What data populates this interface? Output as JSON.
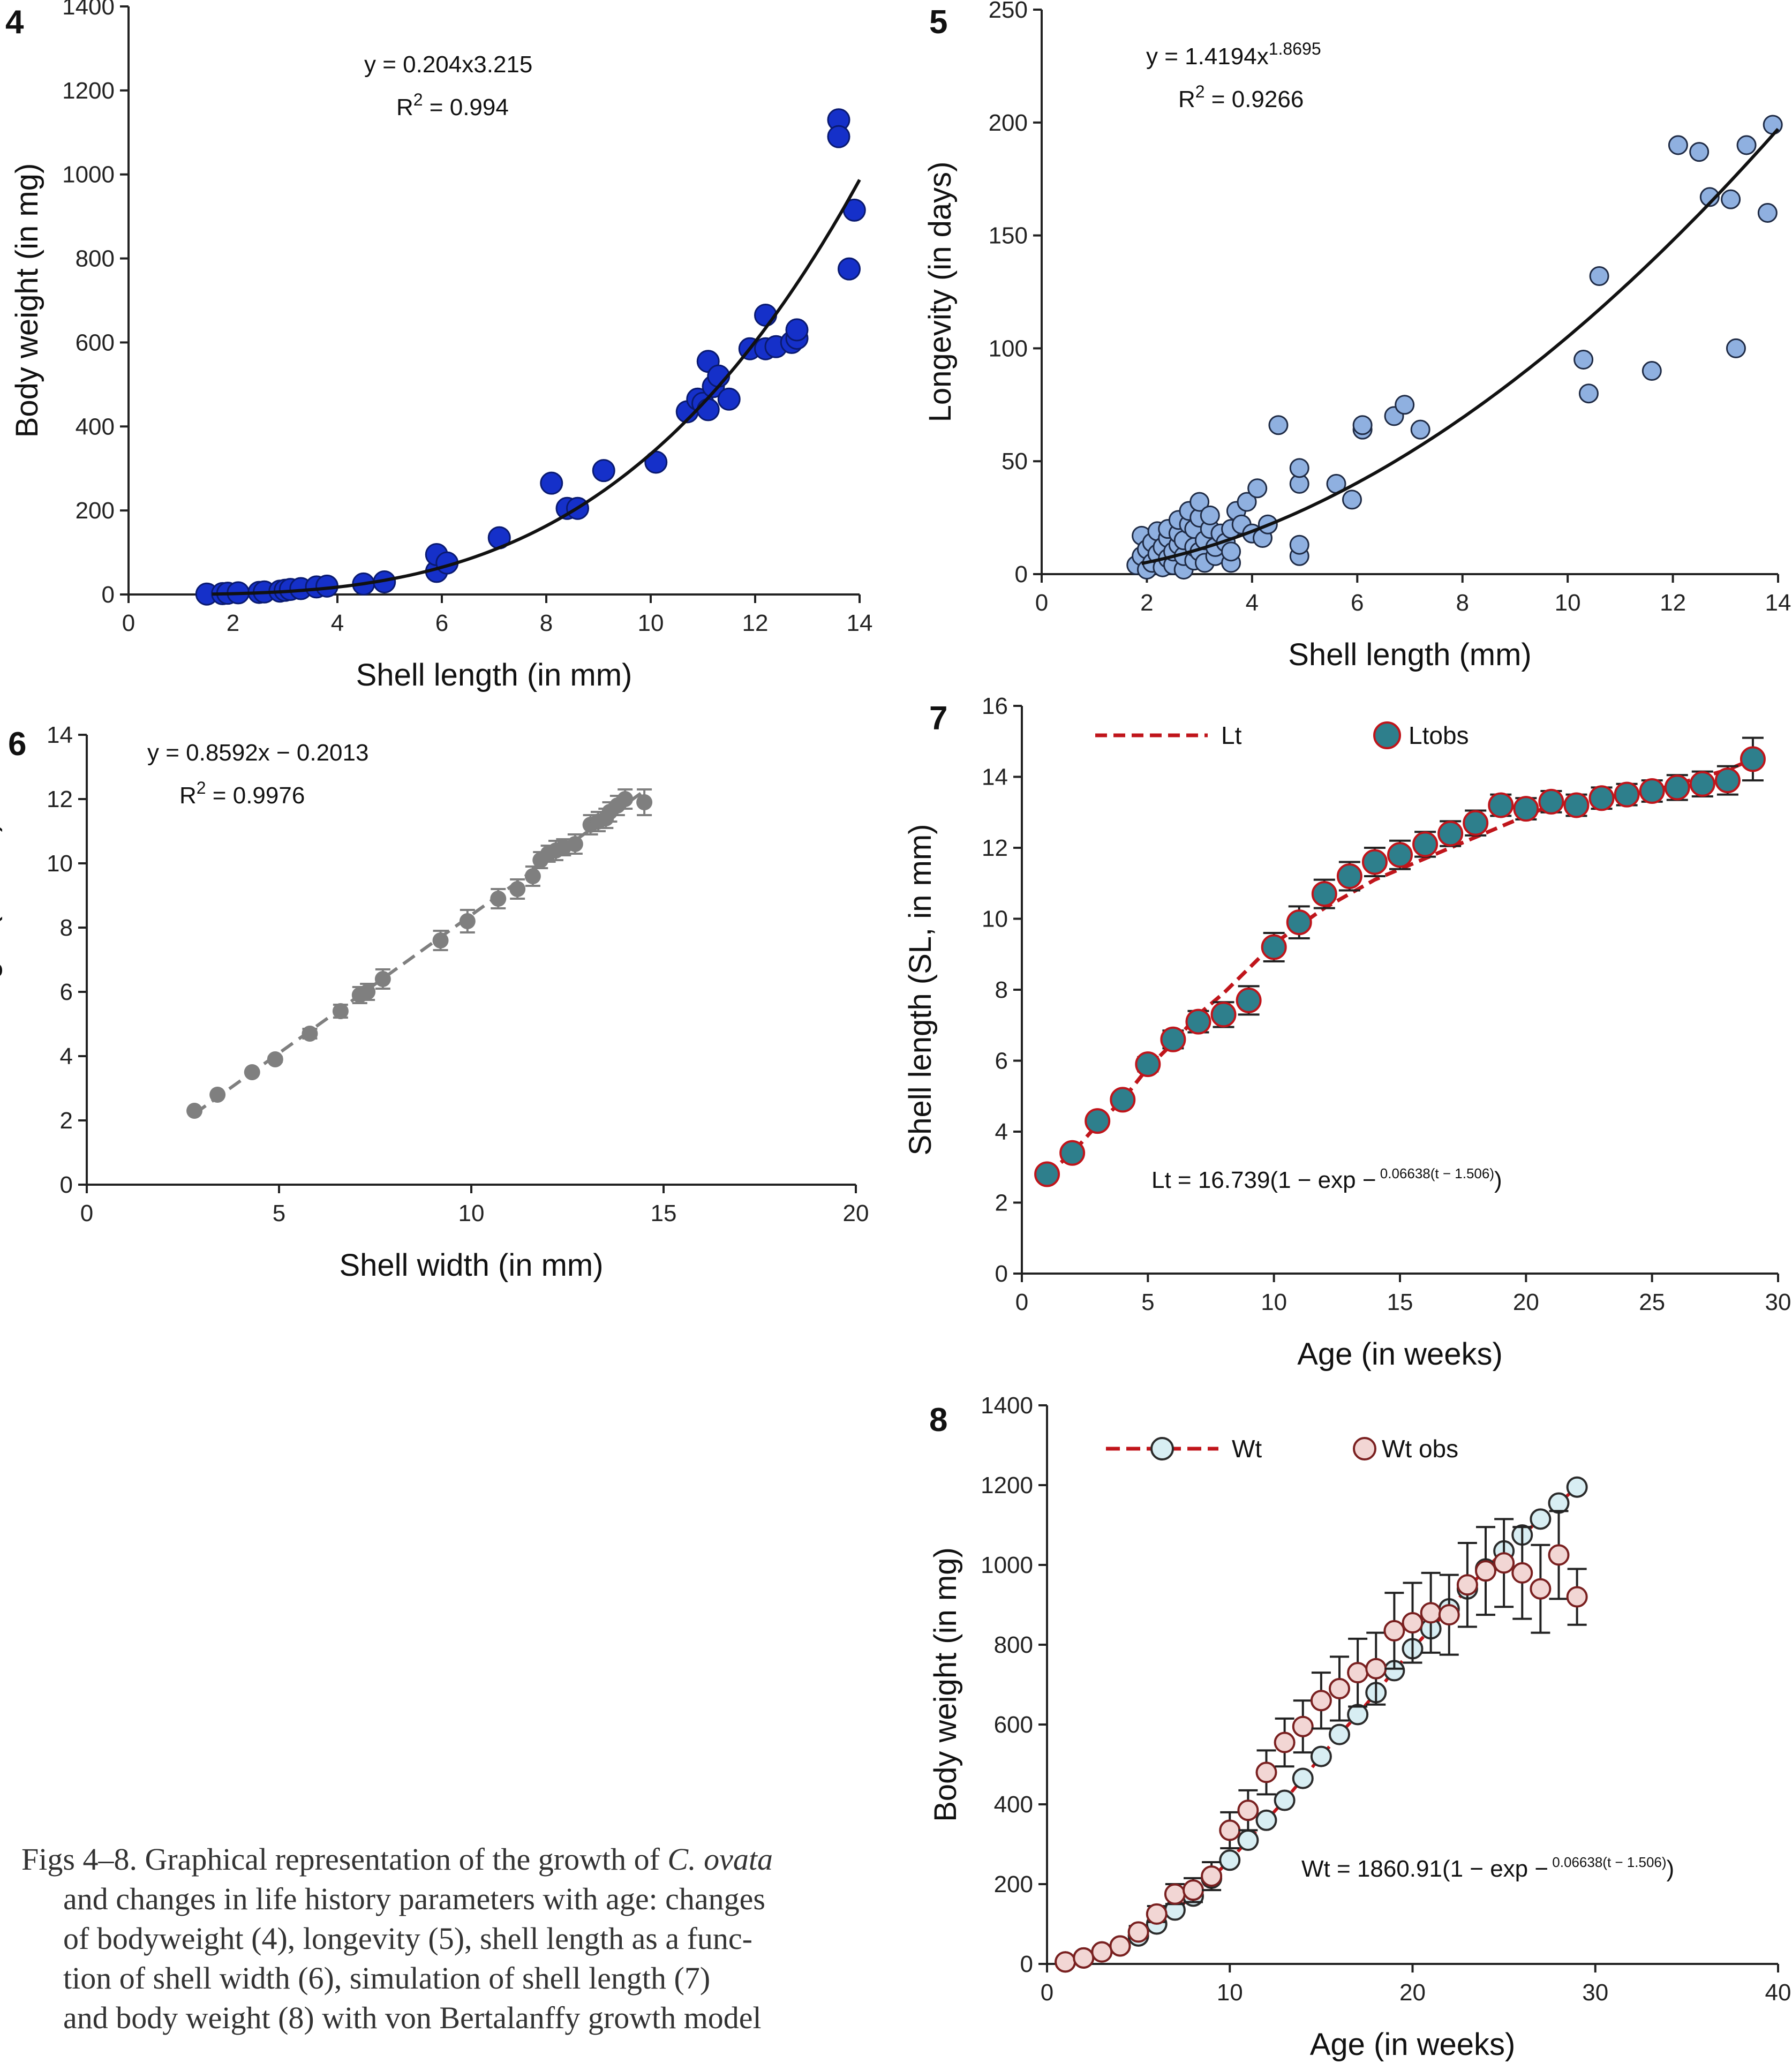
{
  "caption": {
    "lines": [
      {
        "prefix": "Figs 4–8. Graphical representation of the growth of ",
        "italic": "C. ovata",
        "suffix": ""
      },
      {
        "prefix": "and changes in life history parameters with age: changes",
        "italic": "",
        "suffix": ""
      },
      {
        "prefix": "of bodyweight (4), longevity (5), shell length as a func-",
        "italic": "",
        "suffix": ""
      },
      {
        "prefix": "tion of shell width (6), simulation of shell length (7)",
        "italic": "",
        "suffix": ""
      },
      {
        "prefix": "and body weight (8) with von Bertalanffy growth model",
        "italic": "",
        "suffix": ""
      }
    ]
  },
  "chart_data": [
    {
      "id": "4",
      "type": "scatter",
      "panel_number": "4",
      "xlabel": "Shell length (in mm)",
      "ylabel": "Body weight (in mg)",
      "xlim": [
        0,
        14
      ],
      "ylim": [
        0,
        1400
      ],
      "xticks": [
        0,
        2,
        4,
        6,
        8,
        10,
        12,
        14
      ],
      "yticks": [
        0,
        200,
        400,
        600,
        800,
        1000,
        1200,
        1400
      ],
      "equation": {
        "line1": "y = 0.204x3.215",
        "line2_base": "R",
        "line2_sup": "2",
        "line2_rest": " = 0.994"
      },
      "point_color": "#1530c9",
      "trend": {
        "a": 0.204,
        "b": 3.215,
        "x_from": 1.6,
        "x_to": 14.0
      },
      "points": [
        [
          1.5,
          1
        ],
        [
          1.8,
          2
        ],
        [
          1.9,
          3
        ],
        [
          2.1,
          4
        ],
        [
          2.5,
          5
        ],
        [
          2.6,
          6
        ],
        [
          2.9,
          8
        ],
        [
          3.0,
          10
        ],
        [
          3.1,
          12
        ],
        [
          3.3,
          14
        ],
        [
          3.6,
          18
        ],
        [
          3.8,
          20
        ],
        [
          4.5,
          25
        ],
        [
          4.9,
          30
        ],
        [
          5.9,
          55
        ],
        [
          5.9,
          95
        ],
        [
          6.1,
          75
        ],
        [
          7.1,
          135
        ],
        [
          8.1,
          265
        ],
        [
          8.4,
          205
        ],
        [
          8.6,
          205
        ],
        [
          9.1,
          295
        ],
        [
          10.1,
          315
        ],
        [
          10.7,
          435
        ],
        [
          10.9,
          465
        ],
        [
          11.0,
          455
        ],
        [
          11.1,
          555
        ],
        [
          11.1,
          440
        ],
        [
          11.2,
          495
        ],
        [
          11.3,
          520
        ],
        [
          11.5,
          465
        ],
        [
          11.9,
          585
        ],
        [
          12.2,
          665
        ],
        [
          12.2,
          585
        ],
        [
          12.4,
          590
        ],
        [
          12.7,
          600
        ],
        [
          12.8,
          610
        ],
        [
          12.8,
          630
        ],
        [
          13.6,
          1130
        ],
        [
          13.6,
          1090
        ],
        [
          13.8,
          775
        ],
        [
          13.9,
          915
        ]
      ]
    },
    {
      "id": "5",
      "type": "scatter",
      "panel_number": "5",
      "xlabel": "Shell length (mm)",
      "ylabel": "Longevity (in days)",
      "xlim": [
        0,
        14
      ],
      "ylim": [
        0,
        250
      ],
      "xticks": [
        0,
        2,
        4,
        6,
        8,
        10,
        12,
        14
      ],
      "yticks": [
        0,
        50,
        100,
        150,
        200,
        250
      ],
      "equation": {
        "line1_base": "y = 1.4194x",
        "line1_sup": "1.8695",
        "line2_base": "R",
        "line2_sup": "2",
        "line2_rest": " = 0.9266"
      },
      "point_color": "#8fb0e0",
      "trend": {
        "a": 1.4194,
        "b": 1.8695,
        "x_from": 1.9,
        "x_to": 14.0
      },
      "points": [
        [
          1.8,
          4
        ],
        [
          1.9,
          8
        ],
        [
          1.9,
          17
        ],
        [
          2.0,
          2
        ],
        [
          2.0,
          11
        ],
        [
          2.1,
          5
        ],
        [
          2.1,
          14
        ],
        [
          2.2,
          9
        ],
        [
          2.2,
          19
        ],
        [
          2.3,
          3
        ],
        [
          2.3,
          12
        ],
        [
          2.4,
          7
        ],
        [
          2.4,
          16
        ],
        [
          2.4,
          20
        ],
        [
          2.5,
          4
        ],
        [
          2.5,
          10
        ],
        [
          2.6,
          13
        ],
        [
          2.6,
          18
        ],
        [
          2.6,
          24
        ],
        [
          2.7,
          2
        ],
        [
          2.7,
          8
        ],
        [
          2.7,
          15
        ],
        [
          2.8,
          22
        ],
        [
          2.8,
          28
        ],
        [
          2.9,
          6
        ],
        [
          2.9,
          12
        ],
        [
          2.9,
          20
        ],
        [
          3.0,
          10
        ],
        [
          3.0,
          25
        ],
        [
          3.0,
          32
        ],
        [
          3.1,
          5
        ],
        [
          3.1,
          15
        ],
        [
          3.2,
          20
        ],
        [
          3.2,
          26
        ],
        [
          3.3,
          8
        ],
        [
          3.3,
          12
        ],
        [
          3.4,
          18
        ],
        [
          3.5,
          14
        ],
        [
          3.6,
          5
        ],
        [
          3.6,
          10
        ],
        [
          3.6,
          20
        ],
        [
          3.7,
          28
        ],
        [
          3.8,
          22
        ],
        [
          3.9,
          32
        ],
        [
          4.0,
          18
        ],
        [
          4.1,
          38
        ],
        [
          4.2,
          16
        ],
        [
          4.3,
          22
        ],
        [
          4.5,
          66
        ],
        [
          4.9,
          8
        ],
        [
          4.9,
          13
        ],
        [
          4.9,
          40
        ],
        [
          4.9,
          47
        ],
        [
          5.6,
          40
        ],
        [
          5.9,
          33
        ],
        [
          6.1,
          64
        ],
        [
          6.1,
          66
        ],
        [
          6.7,
          70
        ],
        [
          6.9,
          75
        ],
        [
          7.2,
          64
        ],
        [
          10.3,
          95
        ],
        [
          10.4,
          80
        ],
        [
          10.6,
          132
        ],
        [
          11.6,
          90
        ],
        [
          12.1,
          190
        ],
        [
          12.5,
          187
        ],
        [
          12.7,
          167
        ],
        [
          13.1,
          166
        ],
        [
          13.2,
          100
        ],
        [
          13.4,
          190
        ],
        [
          13.8,
          160
        ],
        [
          13.9,
          199
        ]
      ]
    },
    {
      "id": "6",
      "type": "scatter",
      "panel_number": "6",
      "xlabel": "Shell  width (in mm)",
      "ylabel": "Shell length (in mm)",
      "xlim": [
        0,
        20
      ],
      "ylim": [
        0,
        14
      ],
      "xticks": [
        0,
        5,
        10,
        15,
        20
      ],
      "yticks": [
        0,
        2,
        4,
        6,
        8,
        10,
        12,
        14
      ],
      "equation": {
        "line1": "y = 0.8592x − 0.2013",
        "line2_base": "R",
        "line2_sup": "2",
        "line2_rest": " = 0.9976"
      },
      "point_color": "#7f7f7f",
      "trend": {
        "slope": 0.8592,
        "intercept": -0.2013,
        "x_from": 2.8,
        "x_to": 14.5
      },
      "points": [
        [
          2.8,
          2.3,
          0
        ],
        [
          3.4,
          2.8,
          0
        ],
        [
          4.3,
          3.5,
          0.05
        ],
        [
          4.9,
          3.9,
          0.08
        ],
        [
          5.8,
          4.7,
          0.15
        ],
        [
          6.6,
          5.4,
          0.2
        ],
        [
          7.1,
          5.9,
          0.25
        ],
        [
          7.3,
          6.0,
          0.25
        ],
        [
          7.7,
          6.4,
          0.3
        ],
        [
          9.2,
          7.6,
          0.3
        ],
        [
          9.9,
          8.2,
          0.35
        ],
        [
          10.7,
          8.9,
          0.3
        ],
        [
          11.2,
          9.2,
          0.3
        ],
        [
          11.6,
          9.6,
          0.3
        ],
        [
          11.8,
          10.1,
          0.25
        ],
        [
          12.0,
          10.3,
          0.25
        ],
        [
          12.2,
          10.4,
          0.3
        ],
        [
          12.4,
          10.5,
          0.25
        ],
        [
          12.7,
          10.6,
          0.3
        ],
        [
          13.1,
          11.2,
          0.3
        ],
        [
          13.3,
          11.3,
          0.3
        ],
        [
          13.5,
          11.4,
          0.3
        ],
        [
          13.6,
          11.6,
          0.3
        ],
        [
          13.8,
          11.8,
          0.3
        ],
        [
          14.0,
          12.0,
          0.3
        ],
        [
          14.5,
          11.9,
          0.4
        ]
      ]
    },
    {
      "id": "7",
      "type": "line",
      "panel_number": "7",
      "xlabel": "Age (in weeks)",
      "ylabel": "Shell length (SL, in mm)",
      "xlim": [
        0,
        30
      ],
      "ylim": [
        0,
        16
      ],
      "xticks": [
        0,
        5,
        10,
        15,
        20,
        25,
        30
      ],
      "yticks": [
        0,
        2,
        4,
        6,
        8,
        10,
        12,
        14,
        16
      ],
      "legend": {
        "position": "top-left",
        "model_label": "Lt",
        "obs_label": "Ltobs"
      },
      "equation": {
        "base": "Lt = 16.739(1 − exp −",
        "sup": " 0.06638(t − 1.506)",
        "close": ")"
      },
      "colors": {
        "model": "#c0151b",
        "obs_fill": "#2e7f8c",
        "obs_stroke": "#c0151b"
      },
      "model": {
        "Linf": 16.739,
        "k": 0.06638,
        "t0": 1.506
      },
      "series": [
        {
          "name": "Lt",
          "x": [
            1,
            2,
            3,
            4,
            5,
            6,
            7,
            8,
            9,
            10,
            11,
            12,
            13,
            14,
            15,
            16,
            17,
            18,
            19,
            20,
            21,
            22,
            23,
            24,
            25,
            26,
            27,
            28,
            29
          ],
          "values": [
            2.8,
            3.4,
            4.2,
            4.9,
            5.8,
            6.5,
            7.3,
            7.9,
            8.6,
            9.3,
            9.8,
            10.3,
            10.7,
            11.1,
            11.4,
            11.7,
            12.0,
            12.3,
            12.6,
            12.9,
            13.2,
            13.3,
            13.4,
            13.5,
            13.6,
            13.8,
            14.0,
            14.2,
            14.5
          ]
        },
        {
          "name": "Ltobs",
          "x": [
            1,
            2,
            3,
            4,
            5,
            6,
            7,
            8,
            9,
            10,
            11,
            12,
            13,
            14,
            15,
            16,
            17,
            18,
            19,
            20,
            21,
            22,
            23,
            24,
            25,
            26,
            27,
            28,
            29
          ],
          "values": [
            2.8,
            3.4,
            4.3,
            4.9,
            5.9,
            6.6,
            7.1,
            7.3,
            7.7,
            9.2,
            9.9,
            10.7,
            11.2,
            11.6,
            11.8,
            12.1,
            12.4,
            12.7,
            13.2,
            13.1,
            13.3,
            13.2,
            13.4,
            13.5,
            13.6,
            13.7,
            13.8,
            13.9,
            14.5
          ],
          "errors": [
            0.1,
            0.1,
            0.15,
            0.15,
            0.2,
            0.25,
            0.3,
            0.35,
            0.4,
            0.4,
            0.45,
            0.4,
            0.4,
            0.4,
            0.4,
            0.35,
            0.35,
            0.35,
            0.3,
            0.3,
            0.3,
            0.3,
            0.3,
            0.3,
            0.3,
            0.35,
            0.35,
            0.4,
            0.6
          ]
        }
      ]
    },
    {
      "id": "8",
      "type": "line",
      "panel_number": "8",
      "xlabel": "Age (in weeks)",
      "ylabel": "Body weight (in mg)",
      "xlim": [
        0,
        40
      ],
      "ylim": [
        0,
        1400
      ],
      "xticks": [
        0,
        10,
        20,
        30,
        40
      ],
      "yticks": [
        0,
        200,
        400,
        600,
        800,
        1000,
        1200,
        1400
      ],
      "legend": {
        "position": "top-left",
        "model_label": "Wt",
        "obs_label": "Wt obs"
      },
      "equation": {
        "base": "Wt = 1860.91(1 − exp −",
        "sup": " 0.06638(t − 1.506)",
        "close": ")"
      },
      "colors": {
        "model_line": "#c0151b",
        "model_fill": "#d8eef3",
        "model_stroke": "#2b2b2b",
        "obs_fill": "#f2d6d4",
        "obs_stroke": "#7a2020"
      },
      "series": [
        {
          "name": "Wt",
          "x": [
            1,
            2,
            3,
            4,
            5,
            6,
            7,
            8,
            9,
            10,
            11,
            12,
            13,
            14,
            15,
            16,
            17,
            18,
            19,
            20,
            21,
            22,
            23,
            24,
            25,
            26,
            27,
            28,
            29
          ],
          "values": [
            5,
            15,
            30,
            45,
            70,
            100,
            135,
            170,
            215,
            260,
            310,
            360,
            410,
            465,
            520,
            575,
            625,
            680,
            735,
            790,
            840,
            890,
            940,
            990,
            1035,
            1075,
            1115,
            1155,
            1195
          ]
        },
        {
          "name": "Wt obs",
          "x": [
            1,
            2,
            3,
            4,
            5,
            6,
            7,
            8,
            9,
            10,
            11,
            12,
            13,
            14,
            15,
            16,
            17,
            18,
            19,
            20,
            21,
            22,
            23,
            24,
            25,
            26,
            27,
            28,
            29
          ],
          "values": [
            5,
            15,
            30,
            45,
            80,
            125,
            175,
            185,
            220,
            335,
            385,
            480,
            555,
            595,
            660,
            690,
            730,
            740,
            835,
            855,
            880,
            875,
            950,
            985,
            1005,
            980,
            940,
            1025,
            920
          ],
          "errors": [
            5,
            5,
            10,
            10,
            15,
            20,
            25,
            30,
            35,
            45,
            50,
            55,
            60,
            65,
            70,
            80,
            85,
            90,
            95,
            100,
            100,
            100,
            105,
            110,
            110,
            115,
            110,
            110,
            70
          ]
        }
      ]
    }
  ]
}
